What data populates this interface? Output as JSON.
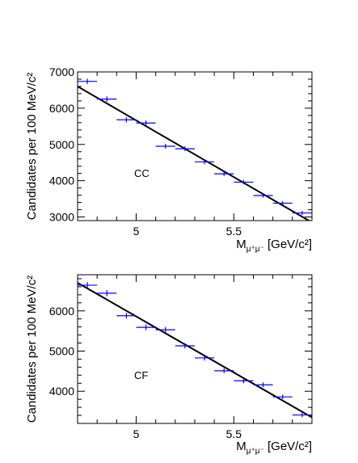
{
  "chart_data": [
    {
      "type": "scatter",
      "annotation": "CC",
      "ylabel": "Candidates per 100 MeV/c²",
      "xlabel": {
        "main": "M",
        "sub": "μ⁺μ⁻",
        "unit": " [GeV/c²]"
      },
      "xlim": [
        4.7,
        5.9
      ],
      "ylim": [
        2900,
        7000
      ],
      "xticks": [
        5,
        5.5
      ],
      "xtick_labels": [
        "5",
        "5.5"
      ],
      "yticks": [
        3000,
        4000,
        5000,
        6000,
        7000
      ],
      "ytick_labels": [
        "3000",
        "4000",
        "5000",
        "6000",
        "7000"
      ],
      "series": [
        {
          "x": [
            4.75,
            4.85,
            4.95,
            5.05,
            5.15,
            5.25,
            5.35,
            5.45,
            5.55,
            5.65,
            5.75,
            5.85
          ],
          "y": [
            6740,
            6250,
            5680,
            5590,
            4950,
            4880,
            4520,
            4190,
            3960,
            3590,
            3380,
            3110
          ],
          "x_err": 0.05,
          "y_err": [
            75,
            75,
            70,
            70,
            65,
            65,
            65,
            60,
            60,
            55,
            55,
            55
          ],
          "color": "#0000ff"
        }
      ],
      "fit_line": {
        "x": [
          4.7,
          5.9
        ],
        "y": [
          6600,
          2850
        ],
        "color": "#000000"
      }
    },
    {
      "type": "scatter",
      "annotation": "CF",
      "ylabel": "Candidates per 100 MeV/c²",
      "xlabel": {
        "main": "M",
        "sub": "μ⁺μ⁻",
        "unit": " [GeV/c²]"
      },
      "xlim": [
        4.7,
        5.9
      ],
      "ylim": [
        3200,
        6900
      ],
      "xticks": [
        5,
        5.5
      ],
      "xtick_labels": [
        "5",
        "5.5"
      ],
      "yticks": [
        4000,
        5000,
        6000
      ],
      "ytick_labels": [
        "4000",
        "5000",
        "6000"
      ],
      "series": [
        {
          "x": [
            4.75,
            4.85,
            4.95,
            5.05,
            5.15,
            5.25,
            5.35,
            5.45,
            5.55,
            5.65,
            5.75,
            5.85
          ],
          "y": [
            6640,
            6440,
            5880,
            5590,
            5530,
            5130,
            4830,
            4510,
            4260,
            4160,
            3860,
            3410
          ],
          "x_err": 0.05,
          "y_err": [
            75,
            75,
            70,
            70,
            70,
            65,
            65,
            60,
            60,
            60,
            55,
            55
          ],
          "color": "#0000ff"
        }
      ],
      "fit_line": {
        "x": [
          4.7,
          5.9
        ],
        "y": [
          6700,
          3350
        ],
        "color": "#000000"
      }
    }
  ]
}
